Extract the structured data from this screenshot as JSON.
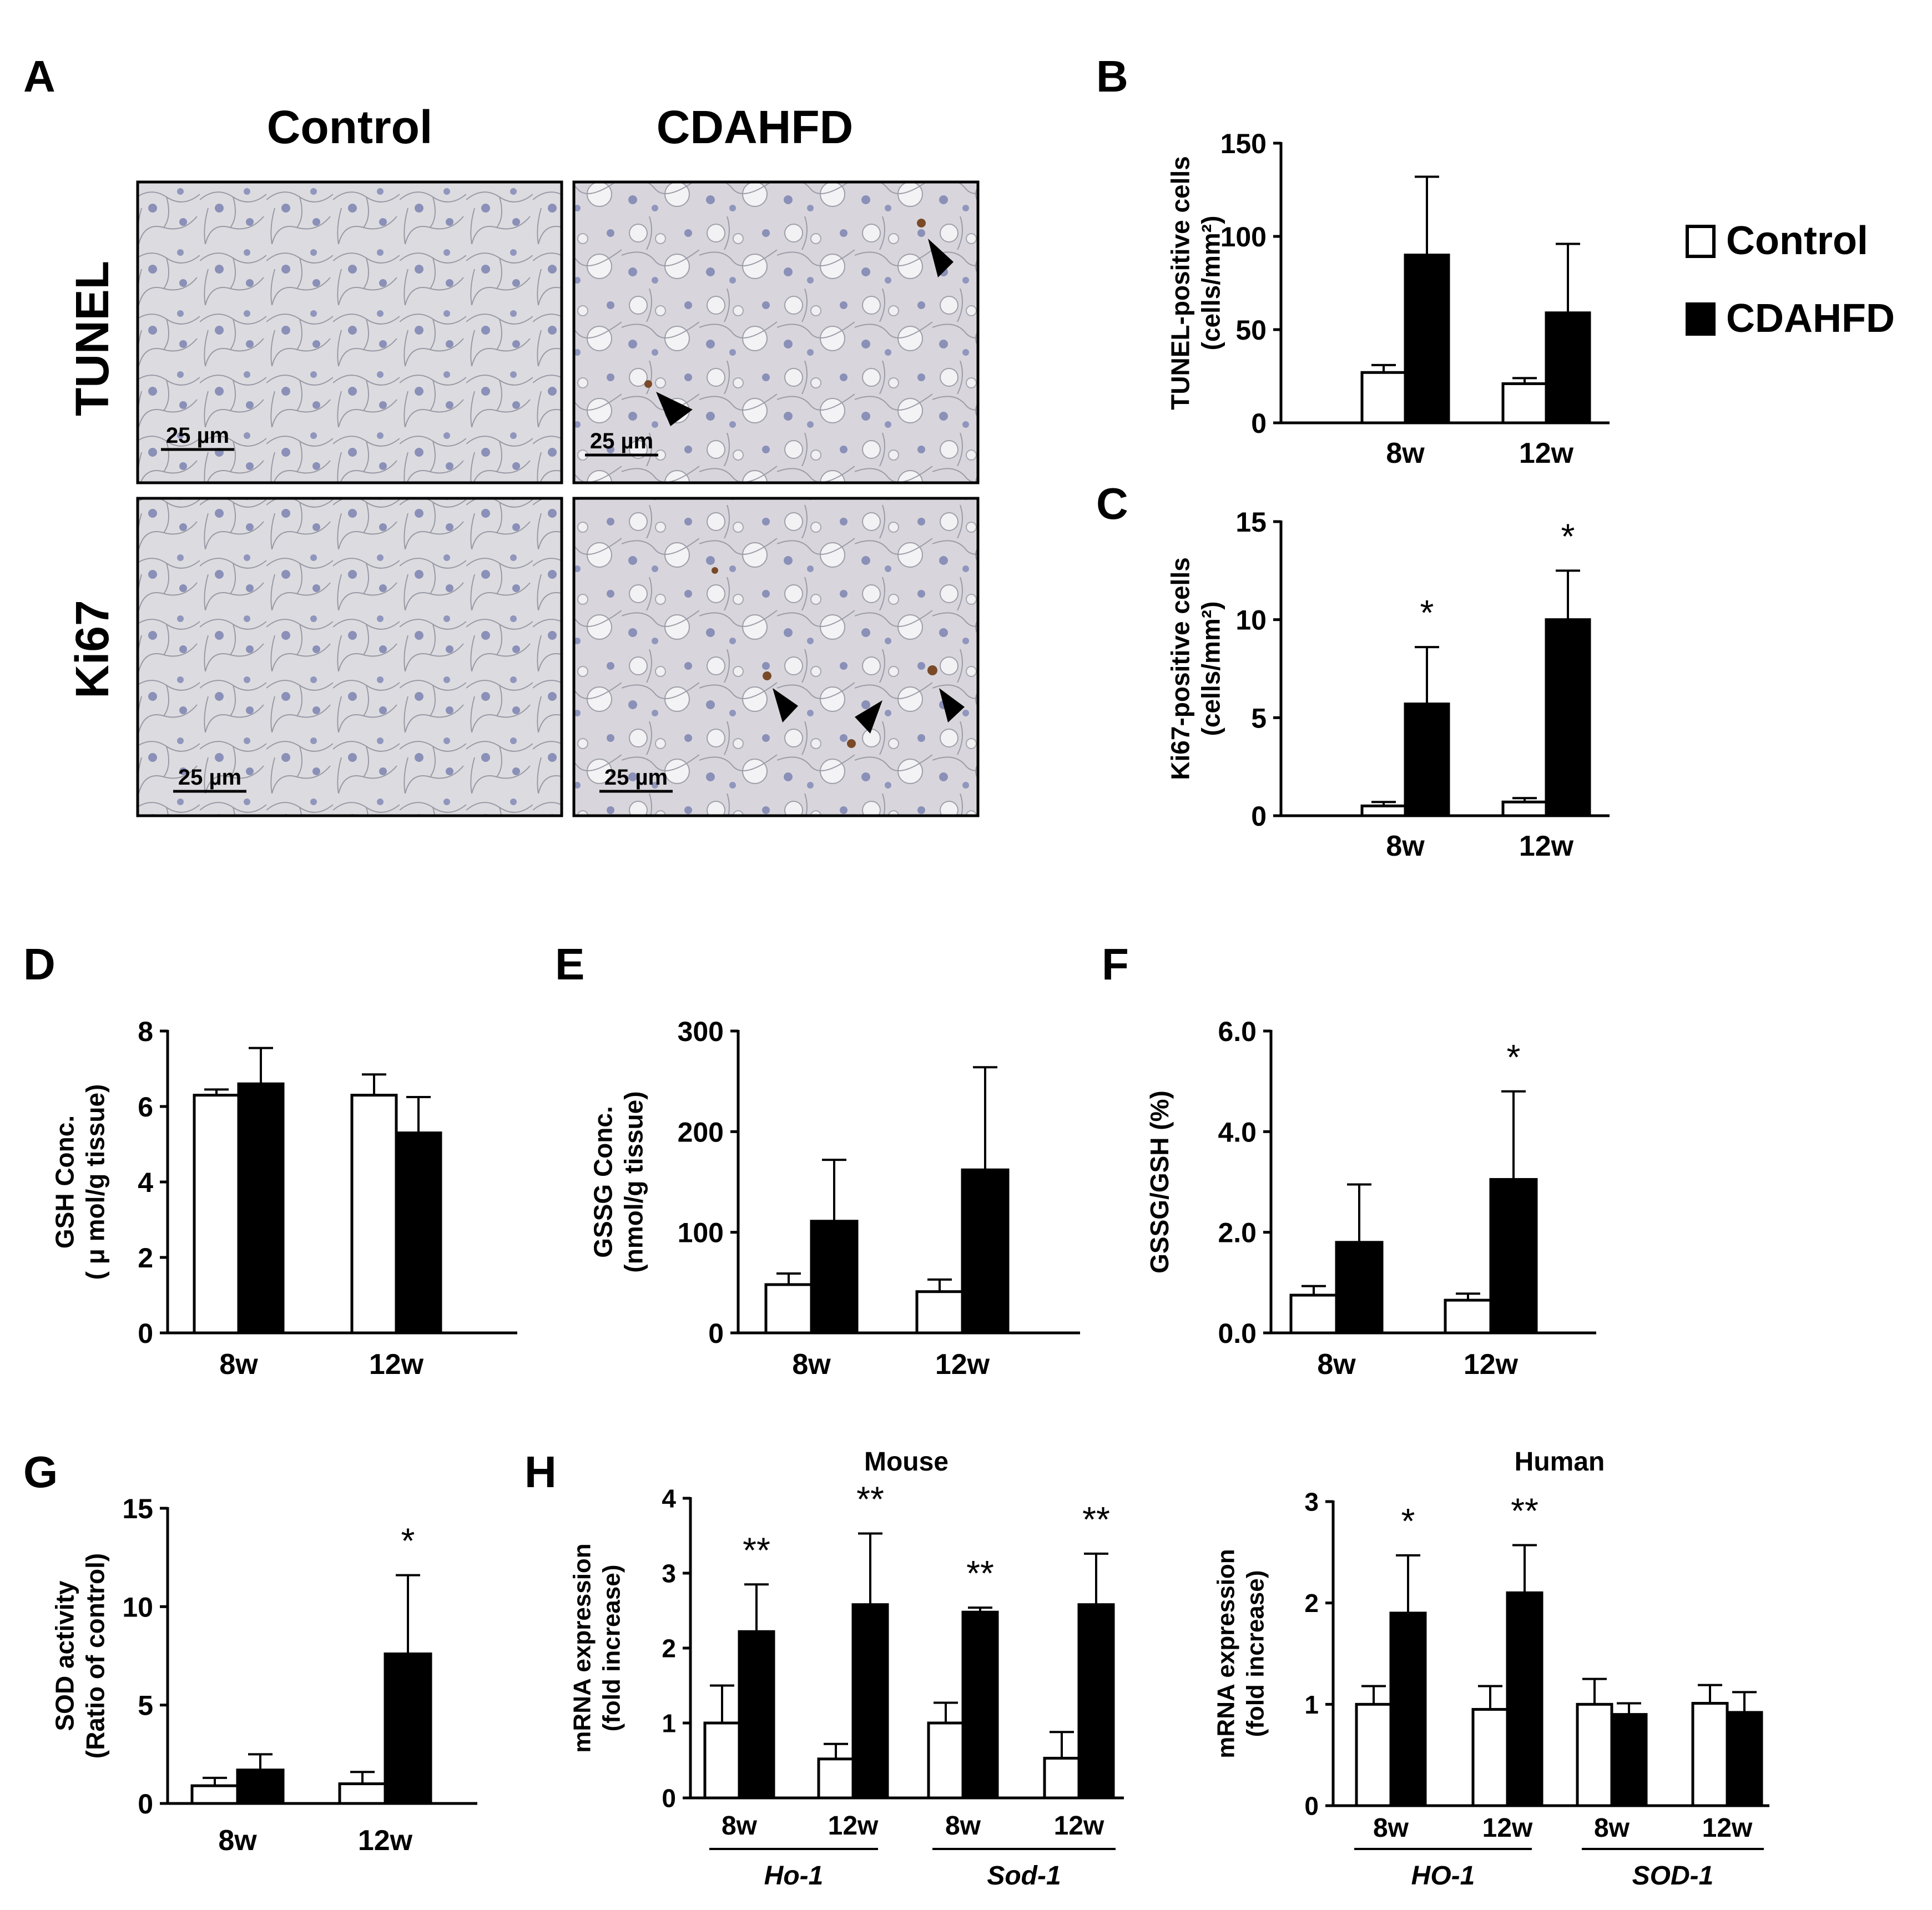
{
  "colors": {
    "control": "#ffffff",
    "cdahfd": "#000000",
    "stroke": "#000000",
    "tissue_bg": "#d9d9df",
    "nucleus": "#8890b8",
    "dab": "#7a4a28"
  },
  "panel_letters": [
    "A",
    "B",
    "C",
    "D",
    "E",
    "F",
    "G",
    "H"
  ],
  "panel_a": {
    "columns": [
      "Control",
      "CDAHFD"
    ],
    "rows": [
      "TUNEL",
      "Ki67"
    ],
    "scale_bar": "25 µm"
  },
  "legend": {
    "items": [
      "Control",
      "CDAHFD"
    ]
  },
  "chart_data": [
    {
      "id": "B",
      "type": "bar",
      "ylabel_lines": [
        "TUNEL-positive cells",
        "(cells/mm²)"
      ],
      "categories": [
        "8w",
        "12w"
      ],
      "ylim": [
        0,
        150
      ],
      "yticks": [
        "0",
        "50",
        "100",
        "150"
      ],
      "series": [
        {
          "name": "Control",
          "values": [
            27,
            21
          ],
          "errors": [
            4,
            3
          ]
        },
        {
          "name": "CDAHFD",
          "values": [
            90,
            59
          ],
          "errors": [
            42,
            37
          ]
        }
      ],
      "annotations": []
    },
    {
      "id": "C",
      "type": "bar",
      "ylabel_lines": [
        "Ki67-positive cells",
        "(cells/mm²)"
      ],
      "categories": [
        "8w",
        "12w"
      ],
      "ylim": [
        0,
        15
      ],
      "yticks": [
        "0",
        "5",
        "10",
        "15"
      ],
      "series": [
        {
          "name": "Control",
          "values": [
            0.5,
            0.7
          ],
          "errors": [
            0.2,
            0.2
          ]
        },
        {
          "name": "CDAHFD",
          "values": [
            5.7,
            10
          ],
          "errors": [
            2.9,
            2.5
          ]
        }
      ],
      "annotations": [
        {
          "index": 0,
          "text": "*"
        },
        {
          "index": 1,
          "text": "*"
        }
      ]
    },
    {
      "id": "D",
      "type": "bar",
      "ylabel_lines": [
        "GSH Conc.",
        "( μ mol/g tissue)"
      ],
      "categories": [
        "8w",
        "12w"
      ],
      "ylim": [
        0,
        8
      ],
      "yticks": [
        "0",
        "2",
        "4",
        "6",
        "8"
      ],
      "series": [
        {
          "name": "Control",
          "values": [
            6.3,
            6.3
          ],
          "errors": [
            0.15,
            0.55
          ]
        },
        {
          "name": "CDAHFD",
          "values": [
            6.6,
            5.3
          ],
          "errors": [
            0.95,
            0.95
          ]
        }
      ],
      "annotations": []
    },
    {
      "id": "E",
      "type": "bar",
      "ylabel_lines": [
        "GSSG Conc.",
        "(nmol/g tissue)"
      ],
      "categories": [
        "8w",
        "12w"
      ],
      "ylim": [
        0,
        300
      ],
      "yticks": [
        "0",
        "100",
        "200",
        "300"
      ],
      "series": [
        {
          "name": "Control",
          "values": [
            48,
            41
          ],
          "errors": [
            11,
            12
          ]
        },
        {
          "name": "CDAHFD",
          "values": [
            111,
            162
          ],
          "errors": [
            61,
            102
          ]
        }
      ],
      "annotations": []
    },
    {
      "id": "F",
      "type": "bar",
      "ylabel_lines": [
        "GSSG/GSH (%)"
      ],
      "categories": [
        "8w",
        "12w"
      ],
      "ylim": [
        0,
        6
      ],
      "yticks": [
        "0.0",
        "2.0",
        "4.0",
        "6.0"
      ],
      "series": [
        {
          "name": "Control",
          "values": [
            0.75,
            0.65
          ],
          "errors": [
            0.18,
            0.13
          ]
        },
        {
          "name": "CDAHFD",
          "values": [
            1.8,
            3.05
          ],
          "errors": [
            1.15,
            1.75
          ]
        }
      ],
      "annotations": [
        {
          "index": 1,
          "text": "*"
        }
      ]
    },
    {
      "id": "G",
      "type": "bar",
      "ylabel_lines": [
        "SOD activity",
        "(Ratio of control)"
      ],
      "categories": [
        "8w",
        "12w"
      ],
      "ylim": [
        0,
        15
      ],
      "yticks": [
        "0",
        "5",
        "10",
        "15"
      ],
      "series": [
        {
          "name": "Control",
          "values": [
            0.9,
            1.0
          ],
          "errors": [
            0.4,
            0.6
          ]
        },
        {
          "name": "CDAHFD",
          "values": [
            1.7,
            7.6
          ],
          "errors": [
            0.8,
            4.0
          ]
        }
      ],
      "annotations": [
        {
          "index": 1,
          "text": "*"
        }
      ]
    },
    {
      "id": "H-mouse",
      "type": "bar",
      "title": "Mouse",
      "ylabel_lines": [
        "mRNA expression",
        "(fold increase)"
      ],
      "categories": [
        "8w",
        "12w",
        "8w",
        "12w"
      ],
      "groups": [
        {
          "label": "Ho-1",
          "span": [
            0,
            1
          ]
        },
        {
          "label": "Sod-1",
          "span": [
            2,
            3
          ]
        }
      ],
      "ylim": [
        0,
        4
      ],
      "yticks": [
        "0",
        "1",
        "2",
        "3",
        "4"
      ],
      "series": [
        {
          "name": "Control",
          "values": [
            1.0,
            0.52,
            1.0,
            0.53
          ],
          "errors": [
            0.5,
            0.2,
            0.27,
            0.35
          ]
        },
        {
          "name": "CDAHFD",
          "values": [
            2.22,
            2.58,
            2.48,
            2.58
          ],
          "errors": [
            0.63,
            0.95,
            0.06,
            0.68
          ]
        }
      ],
      "annotations": [
        {
          "index": 0,
          "text": "**"
        },
        {
          "index": 1,
          "text": "**"
        },
        {
          "index": 2,
          "text": "**"
        },
        {
          "index": 3,
          "text": "**"
        }
      ]
    },
    {
      "id": "H-human",
      "type": "bar",
      "title": "Human",
      "ylabel_lines": [
        "mRNA expression",
        "(fold increase)"
      ],
      "categories": [
        "8w",
        "12w",
        "8w",
        "12w"
      ],
      "groups": [
        {
          "label": "HO-1",
          "span": [
            0,
            1
          ]
        },
        {
          "label": "SOD-1",
          "span": [
            2,
            3
          ]
        }
      ],
      "ylim": [
        0,
        3
      ],
      "yticks": [
        "0",
        "1",
        "2",
        "3"
      ],
      "series": [
        {
          "name": "Control",
          "values": [
            1.0,
            0.95,
            1.0,
            1.01
          ],
          "errors": [
            0.18,
            0.23,
            0.25,
            0.18
          ]
        },
        {
          "name": "CDAHFD",
          "values": [
            1.9,
            2.1,
            0.9,
            0.92
          ],
          "errors": [
            0.57,
            0.47,
            0.11,
            0.2
          ]
        }
      ],
      "annotations": [
        {
          "index": 0,
          "text": "*"
        },
        {
          "index": 1,
          "text": "**"
        }
      ]
    }
  ]
}
